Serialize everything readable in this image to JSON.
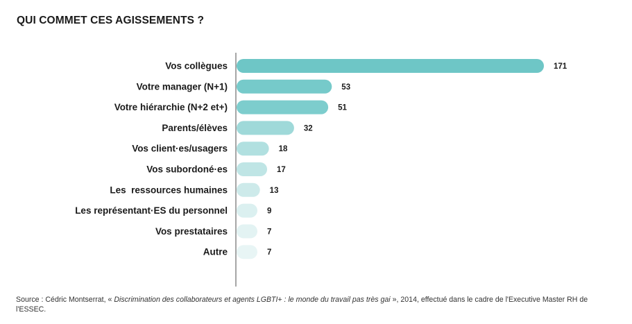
{
  "title": "QUI COMMET CES AGISSEMENTS ?",
  "chart_data": {
    "type": "bar",
    "orientation": "horizontal",
    "categories": [
      "Vos collègues",
      "Votre manager (N+1)",
      "Votre hiérarchie (N+2 et+)",
      "Parents/élèves",
      "Vos client·es/usagers",
      "Vos subordoné·es",
      "Les  ressources humaines",
      "Les représentant·ES du personnel",
      "Vos prestataires",
      "Autre"
    ],
    "values": [
      171,
      53,
      51,
      32,
      18,
      17,
      13,
      9,
      7,
      7
    ],
    "colors": [
      "#6ec6c6",
      "#76caca",
      "#7dcdcd",
      "#9fd9d9",
      "#b1e0e0",
      "#bfe5e5",
      "#cdeaea",
      "#dbf0f0",
      "#e3f3f3",
      "#e8f5f5"
    ],
    "axis_color": "#a6a6a6",
    "grid": false,
    "legend": false
  },
  "source": {
    "prefix": "Source : Cédric Montserrat, « ",
    "italic": "Discrimination des collaborateurs et agents LGBTI+ : le monde du travail pas très gai",
    "suffix": " », 2014, effectué dans le cadre de l'Executive Master RH de l'ESSEC."
  }
}
